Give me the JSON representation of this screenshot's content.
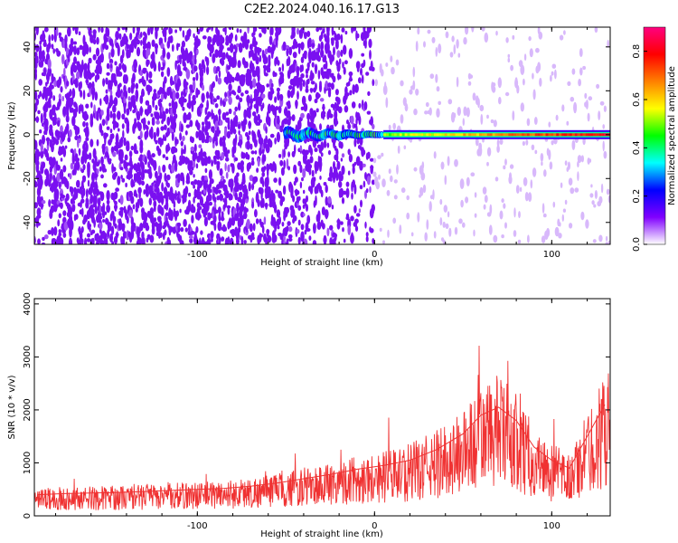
{
  "figure": {
    "title": "C2E2.2024.040.16.17.G13"
  },
  "chart_data": [
    {
      "type": "heatmap",
      "title": "C2E2.2024.040.16.17.G13",
      "xlabel": "Height of straight line (km)",
      "ylabel": "Frequency (Hz)",
      "xlim": [
        -192,
        133
      ],
      "ylim": [
        -50,
        49
      ],
      "x_ticks": [
        -100,
        0,
        100
      ],
      "y_ticks": [
        -40,
        -20,
        0,
        20,
        40
      ],
      "grid": false,
      "colorbar": {
        "label": "Normalized spectral amplitude",
        "range": [
          0,
          0.9
        ],
        "ticks": [
          0.0,
          0.2,
          0.4,
          0.6,
          0.8
        ],
        "colormap": [
          "#ffffff",
          "#8000ff",
          "#0000ff",
          "#00ffff",
          "#00ff00",
          "#ffff00",
          "#ff8000",
          "#ff0000",
          "#ff0080"
        ]
      },
      "signal": {
        "frequency_hz": 0,
        "onset_height_km": -50,
        "max_amplitude_height_km": 125
      }
    },
    {
      "type": "line",
      "xlabel": "Height of straight line (km)",
      "ylabel": "SNR (10 * v/v)",
      "xlim": [
        -192,
        133
      ],
      "ylim": [
        0,
        4100
      ],
      "x_ticks": [
        -100,
        0,
        100
      ],
      "y_ticks": [
        0,
        1000,
        2000,
        3000,
        4000
      ],
      "grid": false,
      "color": "#f03232",
      "x": [
        -190,
        -175,
        -160,
        -145,
        -130,
        -115,
        -100,
        -85,
        -70,
        -55,
        -40,
        -25,
        -10,
        5,
        20,
        35,
        50,
        60,
        70,
        80,
        90,
        100,
        110,
        120,
        130
      ],
      "y": [
        400,
        420,
        430,
        440,
        460,
        480,
        500,
        520,
        560,
        620,
        700,
        780,
        880,
        950,
        1050,
        1250,
        1550,
        1900,
        2050,
        1800,
        1300,
        1050,
        900,
        1500,
        2100
      ]
    }
  ]
}
